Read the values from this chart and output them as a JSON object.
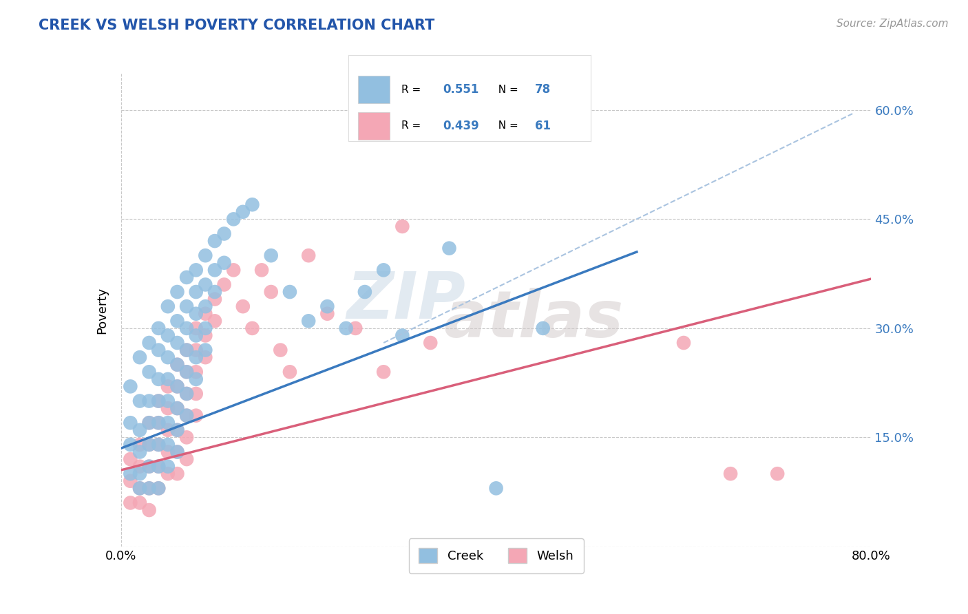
{
  "title": "CREEK VS WELSH POVERTY CORRELATION CHART",
  "source_text": "Source: ZipAtlas.com",
  "ylabel": "Poverty",
  "xmin": 0.0,
  "xmax": 0.8,
  "ymin": 0.0,
  "ymax": 0.65,
  "yticks": [
    0.0,
    0.15,
    0.3,
    0.45,
    0.6
  ],
  "ytick_labels": [
    "",
    "15.0%",
    "30.0%",
    "45.0%",
    "60.0%"
  ],
  "xtick_labels": [
    "0.0%",
    "80.0%"
  ],
  "creek_R": 0.551,
  "creek_N": 78,
  "welsh_R": 0.439,
  "welsh_N": 61,
  "creek_color": "#92bfe0",
  "welsh_color": "#f4a7b5",
  "creek_line_color": "#3a7abf",
  "welsh_line_color": "#d95f7a",
  "dashed_line_color": "#aac4e0",
  "background_color": "#ffffff",
  "grid_color": "#c8c8c8",
  "title_color": "#2255aa",
  "right_tick_color": "#3a7abf",
  "creek_line": [
    [
      0.0,
      0.135
    ],
    [
      0.55,
      0.405
    ]
  ],
  "welsh_line": [
    [
      0.0,
      0.105
    ],
    [
      0.8,
      0.368
    ]
  ],
  "dashed_line": [
    [
      0.28,
      0.28
    ],
    [
      0.78,
      0.595
    ]
  ],
  "creek_scatter": [
    [
      0.01,
      0.22
    ],
    [
      0.01,
      0.17
    ],
    [
      0.01,
      0.14
    ],
    [
      0.01,
      0.1
    ],
    [
      0.02,
      0.26
    ],
    [
      0.02,
      0.2
    ],
    [
      0.02,
      0.16
    ],
    [
      0.02,
      0.13
    ],
    [
      0.02,
      0.1
    ],
    [
      0.02,
      0.08
    ],
    [
      0.03,
      0.28
    ],
    [
      0.03,
      0.24
    ],
    [
      0.03,
      0.2
    ],
    [
      0.03,
      0.17
    ],
    [
      0.03,
      0.14
    ],
    [
      0.03,
      0.11
    ],
    [
      0.03,
      0.08
    ],
    [
      0.04,
      0.3
    ],
    [
      0.04,
      0.27
    ],
    [
      0.04,
      0.23
    ],
    [
      0.04,
      0.2
    ],
    [
      0.04,
      0.17
    ],
    [
      0.04,
      0.14
    ],
    [
      0.04,
      0.11
    ],
    [
      0.04,
      0.08
    ],
    [
      0.05,
      0.33
    ],
    [
      0.05,
      0.29
    ],
    [
      0.05,
      0.26
    ],
    [
      0.05,
      0.23
    ],
    [
      0.05,
      0.2
    ],
    [
      0.05,
      0.17
    ],
    [
      0.05,
      0.14
    ],
    [
      0.05,
      0.11
    ],
    [
      0.06,
      0.35
    ],
    [
      0.06,
      0.31
    ],
    [
      0.06,
      0.28
    ],
    [
      0.06,
      0.25
    ],
    [
      0.06,
      0.22
    ],
    [
      0.06,
      0.19
    ],
    [
      0.06,
      0.16
    ],
    [
      0.06,
      0.13
    ],
    [
      0.07,
      0.37
    ],
    [
      0.07,
      0.33
    ],
    [
      0.07,
      0.3
    ],
    [
      0.07,
      0.27
    ],
    [
      0.07,
      0.24
    ],
    [
      0.07,
      0.21
    ],
    [
      0.07,
      0.18
    ],
    [
      0.08,
      0.38
    ],
    [
      0.08,
      0.35
    ],
    [
      0.08,
      0.32
    ],
    [
      0.08,
      0.29
    ],
    [
      0.08,
      0.26
    ],
    [
      0.08,
      0.23
    ],
    [
      0.09,
      0.4
    ],
    [
      0.09,
      0.36
    ],
    [
      0.09,
      0.33
    ],
    [
      0.09,
      0.3
    ],
    [
      0.09,
      0.27
    ],
    [
      0.1,
      0.42
    ],
    [
      0.1,
      0.38
    ],
    [
      0.1,
      0.35
    ],
    [
      0.11,
      0.43
    ],
    [
      0.11,
      0.39
    ],
    [
      0.12,
      0.45
    ],
    [
      0.13,
      0.46
    ],
    [
      0.14,
      0.47
    ],
    [
      0.16,
      0.4
    ],
    [
      0.18,
      0.35
    ],
    [
      0.2,
      0.31
    ],
    [
      0.22,
      0.33
    ],
    [
      0.24,
      0.3
    ],
    [
      0.26,
      0.35
    ],
    [
      0.28,
      0.38
    ],
    [
      0.3,
      0.29
    ],
    [
      0.35,
      0.41
    ],
    [
      0.4,
      0.08
    ],
    [
      0.45,
      0.3
    ]
  ],
  "welsh_scatter": [
    [
      0.01,
      0.12
    ],
    [
      0.01,
      0.09
    ],
    [
      0.01,
      0.06
    ],
    [
      0.02,
      0.14
    ],
    [
      0.02,
      0.11
    ],
    [
      0.02,
      0.08
    ],
    [
      0.02,
      0.06
    ],
    [
      0.03,
      0.17
    ],
    [
      0.03,
      0.14
    ],
    [
      0.03,
      0.11
    ],
    [
      0.03,
      0.08
    ],
    [
      0.03,
      0.05
    ],
    [
      0.04,
      0.2
    ],
    [
      0.04,
      0.17
    ],
    [
      0.04,
      0.14
    ],
    [
      0.04,
      0.11
    ],
    [
      0.04,
      0.08
    ],
    [
      0.05,
      0.22
    ],
    [
      0.05,
      0.19
    ],
    [
      0.05,
      0.16
    ],
    [
      0.05,
      0.13
    ],
    [
      0.05,
      0.1
    ],
    [
      0.06,
      0.25
    ],
    [
      0.06,
      0.22
    ],
    [
      0.06,
      0.19
    ],
    [
      0.06,
      0.16
    ],
    [
      0.06,
      0.13
    ],
    [
      0.06,
      0.1
    ],
    [
      0.07,
      0.27
    ],
    [
      0.07,
      0.24
    ],
    [
      0.07,
      0.21
    ],
    [
      0.07,
      0.18
    ],
    [
      0.07,
      0.15
    ],
    [
      0.07,
      0.12
    ],
    [
      0.08,
      0.3
    ],
    [
      0.08,
      0.27
    ],
    [
      0.08,
      0.24
    ],
    [
      0.08,
      0.21
    ],
    [
      0.08,
      0.18
    ],
    [
      0.09,
      0.32
    ],
    [
      0.09,
      0.29
    ],
    [
      0.09,
      0.26
    ],
    [
      0.1,
      0.34
    ],
    [
      0.1,
      0.31
    ],
    [
      0.11,
      0.36
    ],
    [
      0.12,
      0.38
    ],
    [
      0.13,
      0.33
    ],
    [
      0.14,
      0.3
    ],
    [
      0.15,
      0.38
    ],
    [
      0.16,
      0.35
    ],
    [
      0.17,
      0.27
    ],
    [
      0.18,
      0.24
    ],
    [
      0.2,
      0.4
    ],
    [
      0.22,
      0.32
    ],
    [
      0.25,
      0.3
    ],
    [
      0.28,
      0.24
    ],
    [
      0.3,
      0.44
    ],
    [
      0.33,
      0.28
    ],
    [
      0.6,
      0.28
    ],
    [
      0.65,
      0.1
    ],
    [
      0.7,
      0.1
    ]
  ],
  "watermark_zip": "ZIP",
  "watermark_atlas": "atlas"
}
